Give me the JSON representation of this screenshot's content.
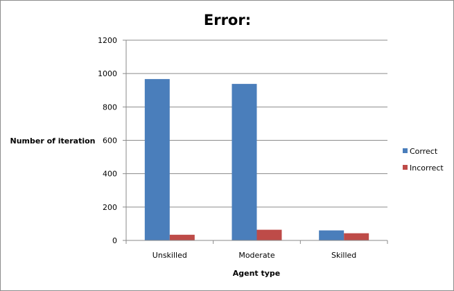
{
  "chart_data": {
    "type": "bar",
    "title": "Error:",
    "xlabel": "Agent type",
    "ylabel": "Number of iteration",
    "categories": [
      "Unskilled",
      "Moderate",
      "Skilled"
    ],
    "series": [
      {
        "name": "Correct",
        "values": [
          967,
          938,
          60
        ],
        "color": "#4a7ebb"
      },
      {
        "name": "Incorrect",
        "values": [
          34,
          64,
          43
        ],
        "color": "#be4b48"
      }
    ],
    "ylim": [
      0,
      1200
    ],
    "yticks": [
      0,
      200,
      400,
      600,
      800,
      1000,
      1200
    ],
    "grid": true,
    "legend_position": "right"
  }
}
